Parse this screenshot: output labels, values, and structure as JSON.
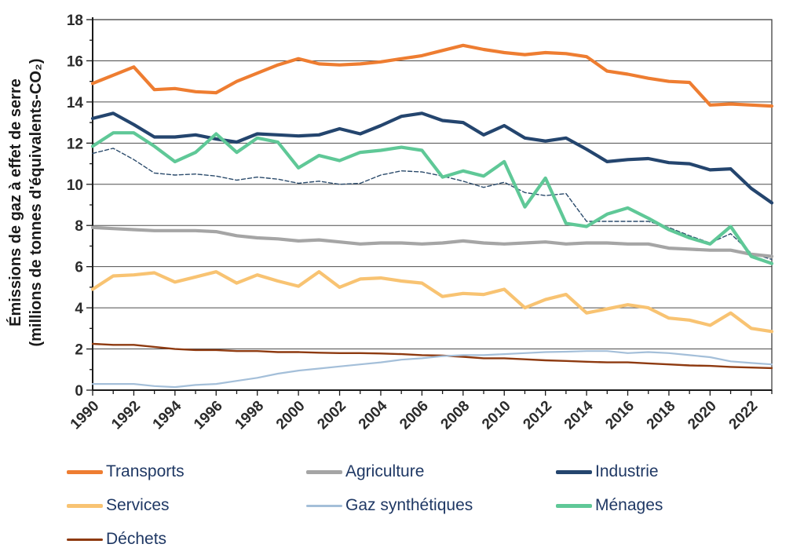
{
  "figure": {
    "y_axis_title_line1": "Émissions de gaz à effet de serre",
    "y_axis_title_line2": "(millions de tonnes d'équivalents-CO₂)"
  },
  "chart_data": {
    "type": "line",
    "title": "",
    "xlabel": "",
    "ylabel": "Émissions de gaz à effet de serre (millions de tonnes d'équivalents-CO₂)",
    "ylim": [
      0,
      18
    ],
    "grid": "horizontal-major",
    "legend_position": "bottom",
    "x": [
      1990,
      1991,
      1992,
      1993,
      1994,
      1995,
      1996,
      1997,
      1998,
      1999,
      2000,
      2001,
      2002,
      2003,
      2004,
      2005,
      2006,
      2007,
      2008,
      2009,
      2010,
      2011,
      2012,
      2013,
      2014,
      2015,
      2016,
      2017,
      2018,
      2019,
      2020,
      2021,
      2022,
      2023
    ],
    "x_tick_labels": [
      "1990",
      "1992",
      "1994",
      "1996",
      "1998",
      "2000",
      "2002",
      "2004",
      "2006",
      "2008",
      "2010",
      "2012",
      "2014",
      "2016",
      "2018",
      "2020",
      "2022"
    ],
    "y_ticks": [
      0,
      2,
      4,
      6,
      8,
      10,
      12,
      14,
      16,
      18
    ],
    "series": [
      {
        "id": "pointilles",
        "name": "série pointillée (non légendée)",
        "color": "#2A4A6B",
        "width": 1.4,
        "dash": "5 3",
        "in_legend": false,
        "values": [
          11.5,
          11.75,
          11.2,
          10.55,
          10.45,
          10.5,
          10.4,
          10.2,
          10.35,
          10.25,
          10.05,
          10.15,
          10.0,
          10.05,
          10.45,
          10.65,
          10.6,
          10.4,
          10.15,
          9.85,
          10.1,
          9.6,
          9.45,
          9.55,
          8.2,
          8.2,
          8.2,
          8.2,
          7.9,
          7.5,
          7.15,
          7.6,
          6.65,
          6.35
        ]
      },
      {
        "id": "dechets",
        "name": "Déchets",
        "color": "#8E3A10",
        "width": 2.4,
        "dash": "",
        "in_legend": true,
        "values": [
          2.25,
          2.2,
          2.2,
          2.1,
          2.0,
          1.95,
          1.95,
          1.9,
          1.9,
          1.85,
          1.85,
          1.82,
          1.8,
          1.8,
          1.78,
          1.75,
          1.7,
          1.68,
          1.62,
          1.55,
          1.55,
          1.5,
          1.45,
          1.42,
          1.38,
          1.35,
          1.35,
          1.3,
          1.25,
          1.2,
          1.18,
          1.13,
          1.1,
          1.07
        ]
      },
      {
        "id": "gaz-synthetiques",
        "name": "Gaz synthétiques",
        "color": "#A4BFD9",
        "width": 2.2,
        "dash": "",
        "in_legend": true,
        "values": [
          0.3,
          0.3,
          0.3,
          0.2,
          0.15,
          0.25,
          0.3,
          0.45,
          0.6,
          0.8,
          0.95,
          1.05,
          1.15,
          1.25,
          1.35,
          1.48,
          1.55,
          1.65,
          1.7,
          1.7,
          1.75,
          1.8,
          1.85,
          1.87,
          1.9,
          1.9,
          1.8,
          1.85,
          1.8,
          1.7,
          1.6,
          1.4,
          1.32,
          1.25
        ]
      },
      {
        "id": "agriculture",
        "name": "Agriculture",
        "color": "#A5A5A5",
        "width": 4.2,
        "dash": "",
        "in_legend": true,
        "values": [
          7.9,
          7.85,
          7.8,
          7.75,
          7.75,
          7.75,
          7.7,
          7.5,
          7.4,
          7.35,
          7.25,
          7.3,
          7.2,
          7.1,
          7.15,
          7.15,
          7.1,
          7.15,
          7.25,
          7.15,
          7.1,
          7.15,
          7.2,
          7.1,
          7.15,
          7.15,
          7.1,
          7.1,
          6.9,
          6.85,
          6.8,
          6.8,
          6.6,
          6.5
        ]
      },
      {
        "id": "services",
        "name": "Services",
        "color": "#F8C372",
        "width": 4.2,
        "dash": "",
        "in_legend": true,
        "values": [
          4.9,
          5.55,
          5.6,
          5.7,
          5.25,
          5.5,
          5.75,
          5.2,
          5.6,
          5.3,
          5.05,
          5.75,
          5.0,
          5.4,
          5.45,
          5.3,
          5.2,
          4.55,
          4.7,
          4.65,
          4.9,
          4.0,
          4.4,
          4.65,
          3.75,
          3.95,
          4.15,
          4.0,
          3.5,
          3.4,
          3.15,
          3.75,
          3.0,
          2.85
        ]
      },
      {
        "id": "industrie",
        "name": "Industrie",
        "color": "#24456E",
        "width": 4.2,
        "dash": "",
        "in_legend": true,
        "values": [
          13.2,
          13.45,
          12.9,
          12.3,
          12.3,
          12.4,
          12.2,
          12.05,
          12.45,
          12.4,
          12.35,
          12.4,
          12.7,
          12.45,
          12.85,
          13.3,
          13.45,
          13.1,
          13.0,
          12.4,
          12.85,
          12.25,
          12.1,
          12.25,
          11.7,
          11.1,
          11.2,
          11.25,
          11.05,
          11.0,
          10.7,
          10.75,
          9.8,
          9.1
        ]
      },
      {
        "id": "menages",
        "name": "Ménages",
        "color": "#5FC897",
        "width": 4.2,
        "dash": "",
        "in_legend": true,
        "values": [
          11.85,
          12.5,
          12.5,
          11.85,
          11.1,
          11.55,
          12.45,
          11.55,
          12.25,
          12.05,
          10.8,
          11.4,
          11.15,
          11.55,
          11.65,
          11.8,
          11.65,
          10.35,
          10.65,
          10.4,
          11.1,
          8.9,
          10.3,
          8.1,
          7.95,
          8.55,
          8.85,
          8.35,
          7.8,
          7.4,
          7.1,
          7.95,
          6.5,
          6.15
        ]
      },
      {
        "id": "transports",
        "name": "Transports",
        "color": "#EE7D31",
        "width": 4.2,
        "dash": "",
        "in_legend": true,
        "values": [
          14.9,
          15.3,
          15.7,
          14.6,
          14.65,
          14.5,
          14.45,
          15.0,
          15.4,
          15.8,
          16.1,
          15.85,
          15.8,
          15.85,
          15.95,
          16.1,
          16.25,
          16.5,
          16.75,
          16.55,
          16.4,
          16.3,
          16.4,
          16.35,
          16.2,
          15.5,
          15.35,
          15.15,
          15.0,
          14.95,
          13.85,
          13.9,
          13.85,
          13.8
        ]
      }
    ]
  },
  "legend": {
    "items": [
      {
        "label": "Transports",
        "color": "#EE7D31",
        "thin": false
      },
      {
        "label": "Agriculture",
        "color": "#A5A5A5",
        "thin": false
      },
      {
        "label": "Industrie",
        "color": "#24456E",
        "thin": false
      },
      {
        "label": "Services",
        "color": "#F8C372",
        "thin": false
      },
      {
        "label": "Gaz synthétiques",
        "color": "#A4BFD9",
        "thin": true
      },
      {
        "label": "Ménages",
        "color": "#5FC897",
        "thin": false
      },
      {
        "label": "Déchets",
        "color": "#8E3A10",
        "thin": true
      }
    ]
  }
}
